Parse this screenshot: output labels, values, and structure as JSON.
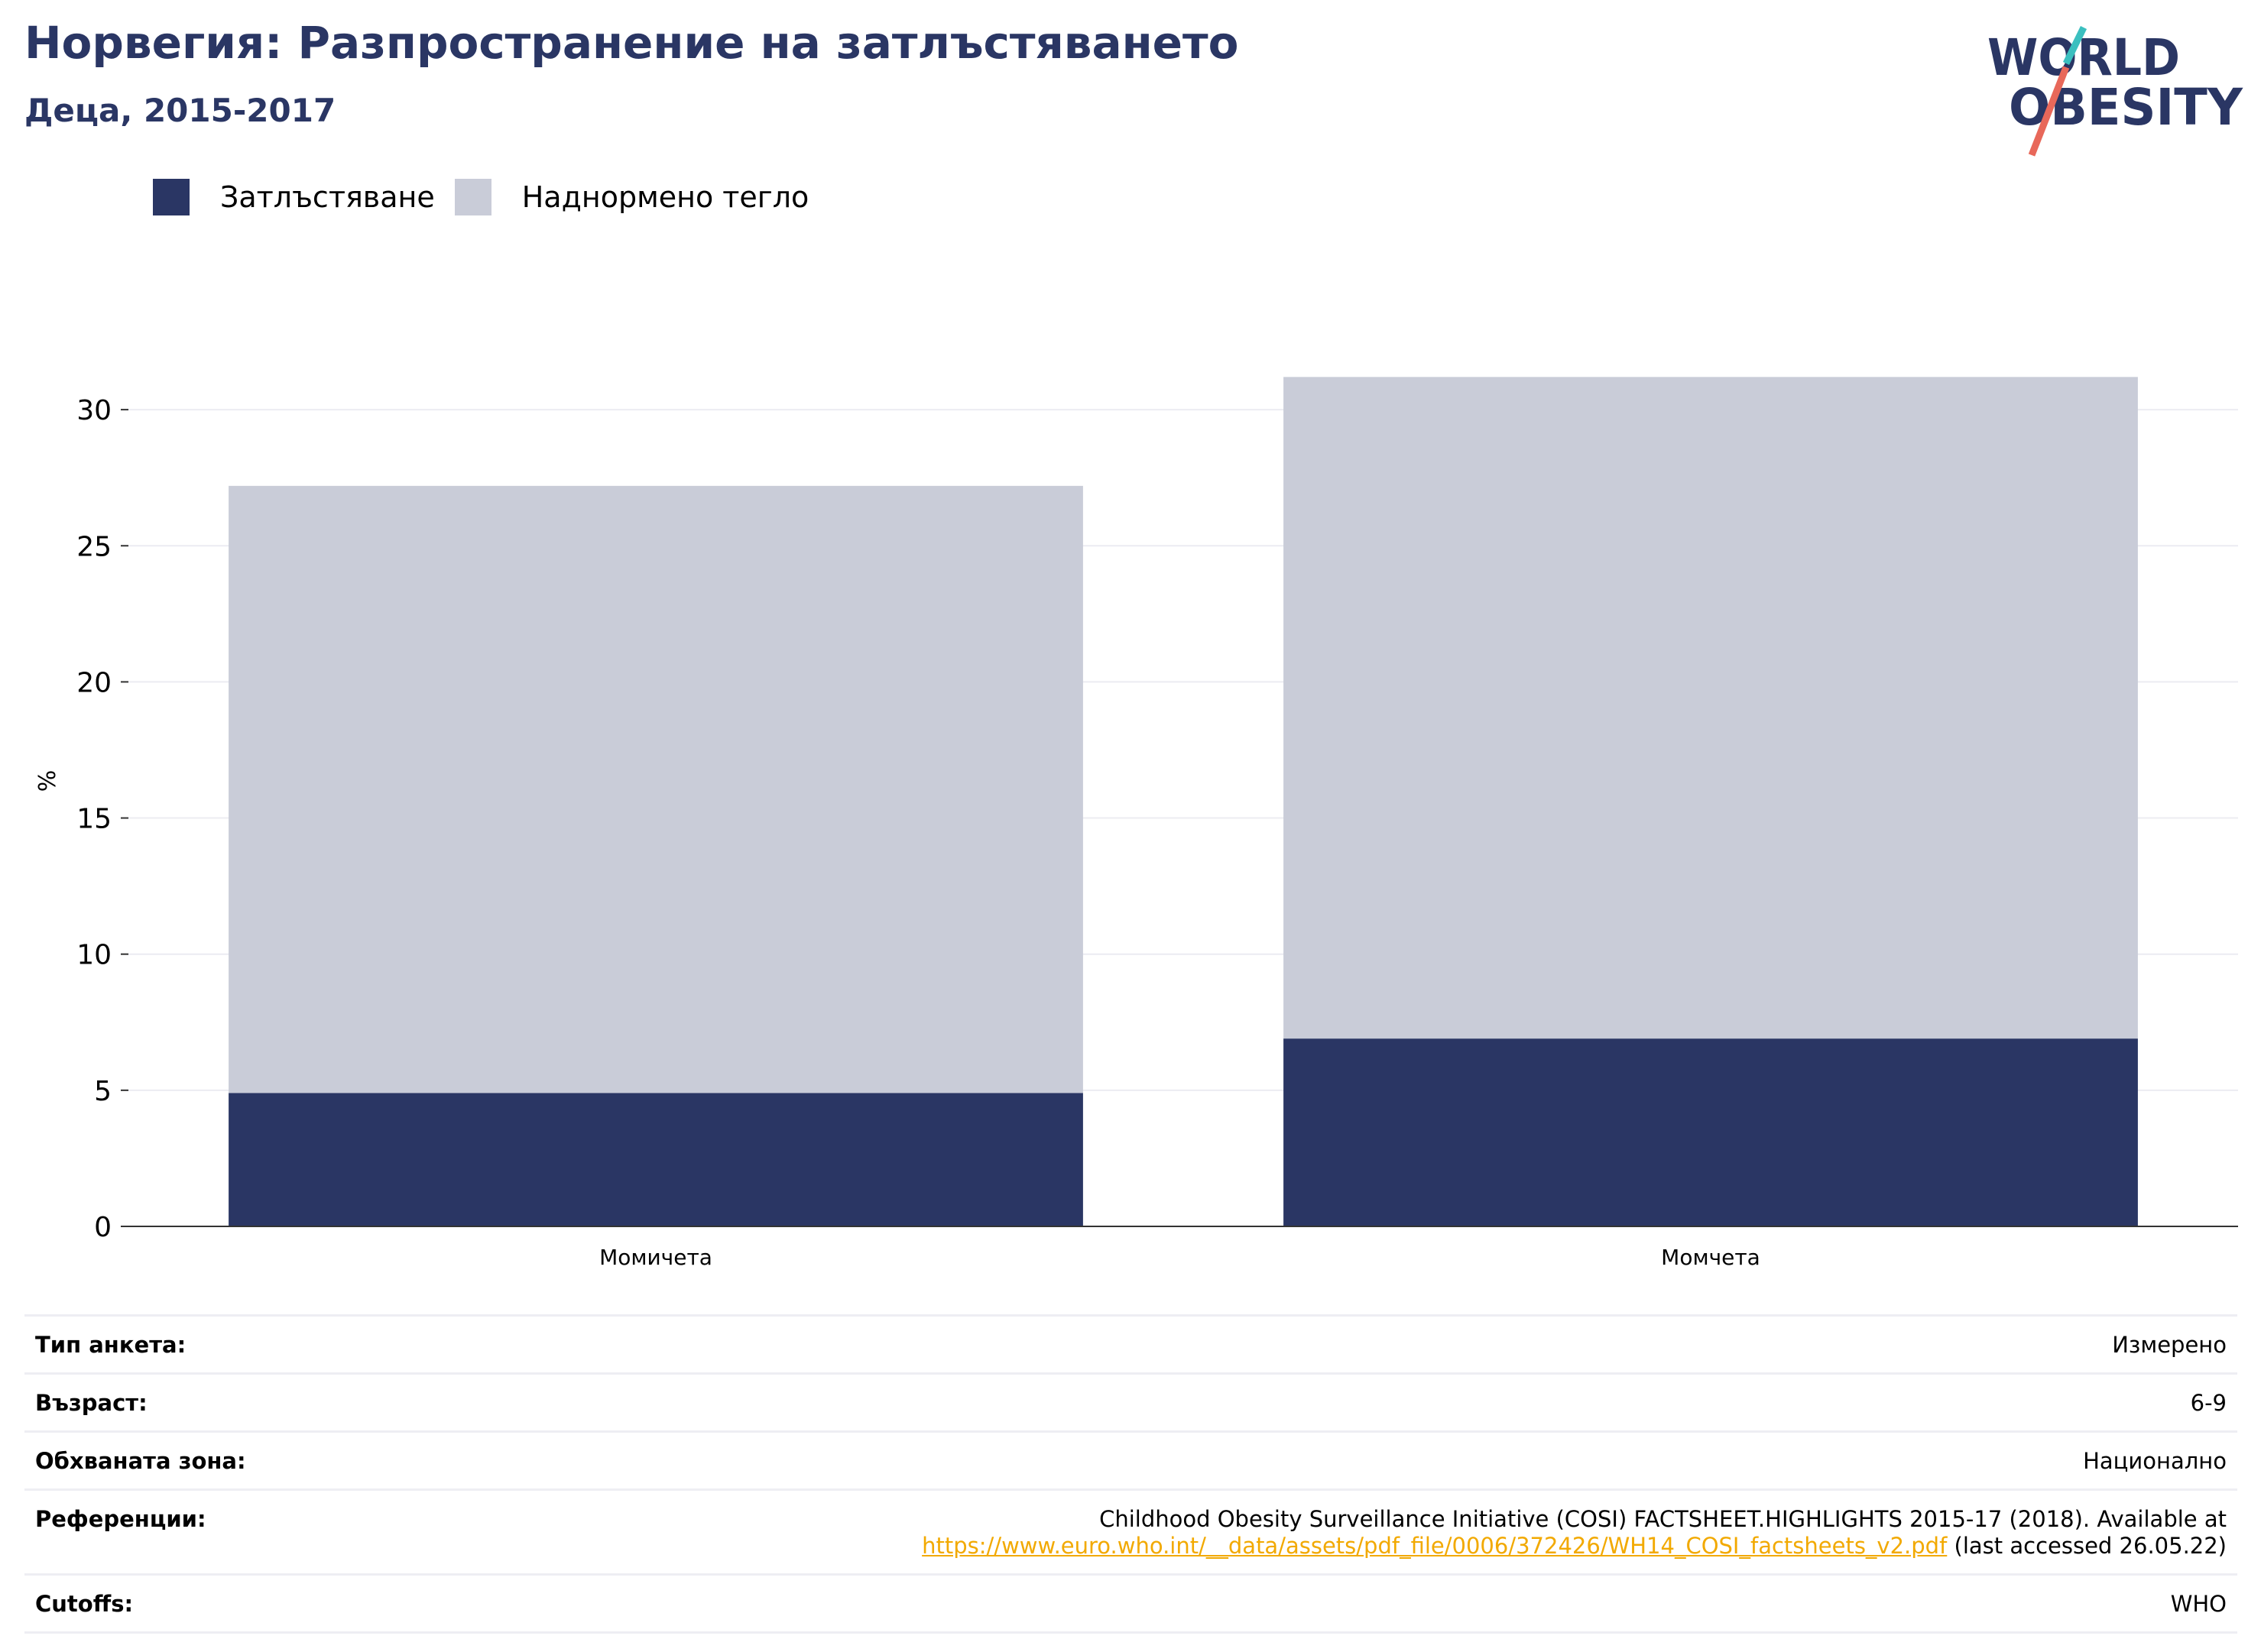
{
  "header": {
    "title": "Норвегия: Разпространение на затлъстяването",
    "subtitle": "Деца, 2015-2017"
  },
  "logo": {
    "text_line1": "WORLD",
    "text_line2": "OBESITY",
    "color_text": "#2a3664",
    "color_slash_top": "#3bbfbf",
    "color_slash_bottom": "#e8685a"
  },
  "legend": {
    "items": [
      {
        "label": "Затлъстяване",
        "color": "#2a3664"
      },
      {
        "label": "Наднормено тегло",
        "color": "#c9ccd8"
      }
    ]
  },
  "chart_data": {
    "type": "bar",
    "stacked": true,
    "categories": [
      "Момичета",
      "Момчета"
    ],
    "series": [
      {
        "name": "Затлъстяване",
        "values": [
          4.9,
          6.9
        ],
        "color": "#2a3664"
      },
      {
        "name": "Наднормено тегло",
        "values": [
          22.3,
          24.3
        ],
        "color": "#c9ccd8"
      }
    ],
    "ylabel": "%",
    "ylim": [
      0,
      31.5
    ],
    "yticks": [
      0,
      5,
      10,
      15,
      20,
      25,
      30
    ],
    "grid": true,
    "legend_position": "top-left"
  },
  "info": {
    "rows": [
      {
        "label": "Тип анкета:",
        "value": "Измерено"
      },
      {
        "label": "Възраст:",
        "value": "6-9"
      },
      {
        "label": "Обхваната зона:",
        "value": "Национално"
      },
      {
        "label": "Референции:",
        "value_text": "Childhood Obesity Surveillance Initiative (COSI) FACTSHEET.HIGHLIGHTS 2015-17 (2018). Available at",
        "link": "https://www.euro.who.int/__data/assets/pdf_file/0006/372426/WH14_COSI_factsheets_v2.pdf",
        "value_suffix": "(last accessed 26.05.22)"
      },
      {
        "label": "Cutoffs:",
        "value": "WHO"
      }
    ]
  }
}
